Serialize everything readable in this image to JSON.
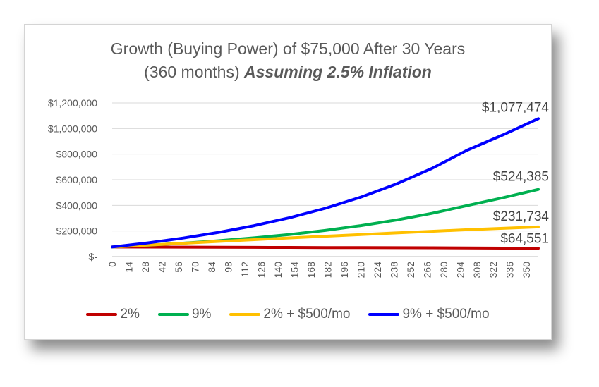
{
  "chart_data": {
    "type": "line",
    "title_main": "Growth (Buying Power) of $75,000 After 30 Years",
    "title_sub_plain": "(360 months) ",
    "title_sub_emph": "Assuming 2.5% Inflation",
    "xlabel": "",
    "ylabel": "",
    "x_range": [
      0,
      360
    ],
    "x_ticks": [
      "0",
      "14",
      "28",
      "42",
      "56",
      "70",
      "84",
      "98",
      "112",
      "126",
      "140",
      "154",
      "168",
      "182",
      "196",
      "210",
      "224",
      "238",
      "252",
      "266",
      "280",
      "294",
      "308",
      "322",
      "336",
      "350"
    ],
    "ylim": [
      0,
      1200000
    ],
    "y_ticks": [
      {
        "value": 0,
        "label": "$-"
      },
      {
        "value": 200000,
        "label": "$200,000"
      },
      {
        "value": 400000,
        "label": "$400,000"
      },
      {
        "value": 600000,
        "label": "$600,000"
      },
      {
        "value": 800000,
        "label": "$800,000"
      },
      {
        "value": 1000000,
        "label": "$1,000,000"
      },
      {
        "value": 1200000,
        "label": "$1,200,000"
      }
    ],
    "grid": true,
    "legend_position": "bottom",
    "series": [
      {
        "name": "2%",
        "color": "#C00000",
        "x": [
          0,
          30,
          60,
          90,
          120,
          150,
          180,
          210,
          240,
          270,
          300,
          330,
          360
        ],
        "y": [
          75000,
          74270,
          73550,
          72830,
          72120,
          71420,
          70720,
          70030,
          69350,
          68670,
          67890,
          66310,
          64551
        ],
        "end_label": "$64,551"
      },
      {
        "name": "9%",
        "color": "#00B050",
        "x": [
          0,
          30,
          60,
          90,
          120,
          150,
          180,
          210,
          240,
          270,
          300,
          330,
          360
        ],
        "y": [
          75000,
          88640,
          104760,
          123810,
          146330,
          172940,
          204390,
          241560,
          285490,
          337410,
          398780,
          458900,
          524385
        ],
        "end_label": "$524,385"
      },
      {
        "name": "2% + $500/mo",
        "color": "#FFC000",
        "x": [
          0,
          30,
          60,
          90,
          120,
          150,
          180,
          210,
          240,
          270,
          300,
          330,
          360
        ],
        "y": [
          75000,
          89700,
          104100,
          118200,
          132000,
          145600,
          158900,
          172000,
          184800,
          197400,
          209800,
          220900,
          231734
        ],
        "end_label": "$231,734"
      },
      {
        "name": "9% + $500/mo",
        "color": "#0000FF",
        "x": [
          0,
          30,
          60,
          90,
          120,
          150,
          180,
          210,
          240,
          270,
          300,
          330,
          360
        ],
        "y": [
          75000,
          106900,
          144600,
          189100,
          241700,
          303800,
          377200,
          464100,
          566700,
          688000,
          831400,
          950100,
          1077474
        ],
        "end_label": "$1,077,474"
      }
    ]
  }
}
